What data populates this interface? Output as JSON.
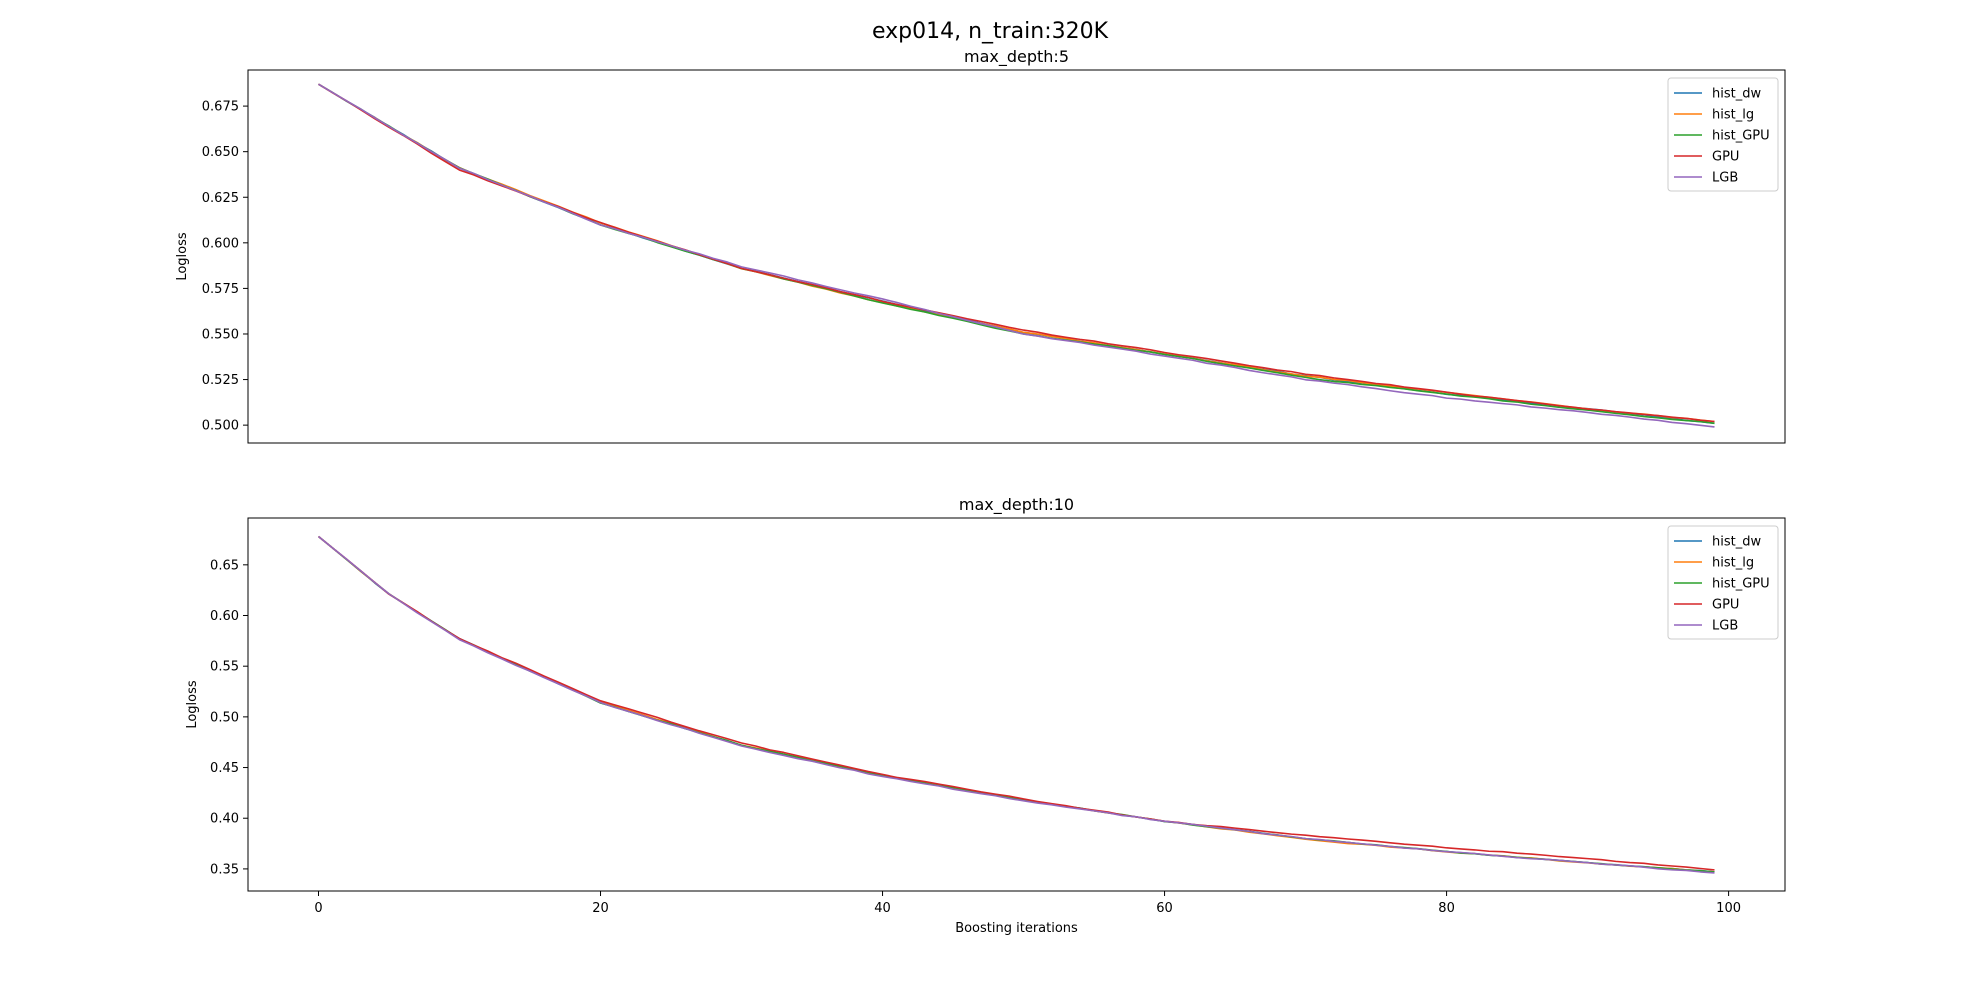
{
  "figure": {
    "suptitle": "exp014, n_train:320K"
  },
  "colors": {
    "hist_dw": "#1f77b4",
    "hist_lg": "#ff7f0e",
    "hist_GPU": "#2ca02c",
    "GPU": "#d62728",
    "LGB": "#9467bd"
  },
  "chart_data": [
    {
      "type": "line",
      "title": "max_depth:5",
      "xlabel": "",
      "ylabel": "Logloss",
      "xlim": [
        -5,
        104
      ],
      "ylim": [
        0.4902,
        0.6948
      ],
      "x_ticks": [],
      "y_ticks": [
        0.5,
        0.525,
        0.55,
        0.575,
        0.6,
        0.625,
        0.65,
        0.675
      ],
      "y_tick_labels": [
        "0.500",
        "0.525",
        "0.550",
        "0.575",
        "0.600",
        "0.625",
        "0.650",
        "0.675"
      ],
      "legend_position": "top-right",
      "x_start": 0,
      "x_end": 99,
      "series": [
        {
          "name": "hist_dw",
          "anchors": [
            [
              0,
              0.687
            ],
            [
              10,
              0.641
            ],
            [
              20,
              0.61
            ],
            [
              30,
              0.586
            ],
            [
              40,
              0.568
            ],
            [
              50,
              0.551
            ],
            [
              60,
              0.539
            ],
            [
              70,
              0.527
            ],
            [
              80,
              0.517
            ],
            [
              90,
              0.509
            ],
            [
              99,
              0.501
            ]
          ]
        },
        {
          "name": "hist_lg",
          "anchors": [
            [
              0,
              0.687
            ],
            [
              10,
              0.641
            ],
            [
              20,
              0.611
            ],
            [
              30,
              0.586
            ],
            [
              40,
              0.567
            ],
            [
              50,
              0.551
            ],
            [
              60,
              0.539
            ],
            [
              70,
              0.527
            ],
            [
              80,
              0.518
            ],
            [
              90,
              0.509
            ],
            [
              99,
              0.502
            ]
          ]
        },
        {
          "name": "hist_GPU",
          "anchors": [
            [
              0,
              0.687
            ],
            [
              10,
              0.641
            ],
            [
              20,
              0.61
            ],
            [
              30,
              0.586
            ],
            [
              40,
              0.567
            ],
            [
              50,
              0.55
            ],
            [
              60,
              0.539
            ],
            [
              70,
              0.526
            ],
            [
              80,
              0.517
            ],
            [
              90,
              0.508
            ],
            [
              99,
              0.501
            ]
          ]
        },
        {
          "name": "GPU",
          "anchors": [
            [
              0,
              0.687
            ],
            [
              10,
              0.64
            ],
            [
              20,
              0.611
            ],
            [
              30,
              0.586
            ],
            [
              40,
              0.568
            ],
            [
              50,
              0.552
            ],
            [
              60,
              0.54
            ],
            [
              70,
              0.528
            ],
            [
              80,
              0.518
            ],
            [
              90,
              0.509
            ],
            [
              99,
              0.502
            ]
          ]
        },
        {
          "name": "LGB",
          "anchors": [
            [
              0,
              0.687
            ],
            [
              10,
              0.641
            ],
            [
              20,
              0.61
            ],
            [
              30,
              0.587
            ],
            [
              40,
              0.569
            ],
            [
              50,
              0.55
            ],
            [
              60,
              0.538
            ],
            [
              70,
              0.525
            ],
            [
              80,
              0.515
            ],
            [
              90,
              0.507
            ],
            [
              99,
              0.499
            ]
          ]
        }
      ]
    },
    {
      "type": "line",
      "title": "max_depth:10",
      "xlabel": "Boosting iterations",
      "ylabel": "Logloss",
      "xlim": [
        -5,
        104
      ],
      "ylim": [
        0.3282,
        0.6962
      ],
      "x_ticks": [
        0,
        20,
        40,
        60,
        80,
        100
      ],
      "y_ticks": [
        0.35,
        0.4,
        0.45,
        0.5,
        0.55,
        0.6,
        0.65
      ],
      "y_tick_labels": [
        "0.35",
        "0.40",
        "0.45",
        "0.50",
        "0.55",
        "0.60",
        "0.65"
      ],
      "legend_position": "top-right",
      "x_start": 0,
      "x_end": 99,
      "series": [
        {
          "name": "hist_dw",
          "anchors": [
            [
              0,
              0.678
            ],
            [
              5,
              0.621
            ],
            [
              10,
              0.577
            ],
            [
              20,
              0.514
            ],
            [
              30,
              0.472
            ],
            [
              40,
              0.442
            ],
            [
              50,
              0.418
            ],
            [
              60,
              0.397
            ],
            [
              70,
              0.38
            ],
            [
              80,
              0.367
            ],
            [
              90,
              0.356
            ],
            [
              99,
              0.347
            ]
          ]
        },
        {
          "name": "hist_lg",
          "anchors": [
            [
              0,
              0.678
            ],
            [
              5,
              0.621
            ],
            [
              10,
              0.577
            ],
            [
              20,
              0.515
            ],
            [
              30,
              0.472
            ],
            [
              40,
              0.442
            ],
            [
              50,
              0.418
            ],
            [
              60,
              0.397
            ],
            [
              70,
              0.379
            ],
            [
              80,
              0.367
            ],
            [
              90,
              0.356
            ],
            [
              99,
              0.347
            ]
          ]
        },
        {
          "name": "hist_GPU",
          "anchors": [
            [
              0,
              0.678
            ],
            [
              5,
              0.621
            ],
            [
              10,
              0.577
            ],
            [
              20,
              0.514
            ],
            [
              30,
              0.472
            ],
            [
              40,
              0.442
            ],
            [
              50,
              0.418
            ],
            [
              60,
              0.397
            ],
            [
              70,
              0.38
            ],
            [
              80,
              0.367
            ],
            [
              90,
              0.356
            ],
            [
              99,
              0.347
            ]
          ]
        },
        {
          "name": "GPU",
          "anchors": [
            [
              0,
              0.678
            ],
            [
              5,
              0.621
            ],
            [
              10,
              0.577
            ],
            [
              20,
              0.516
            ],
            [
              30,
              0.474
            ],
            [
              40,
              0.443
            ],
            [
              50,
              0.419
            ],
            [
              60,
              0.397
            ],
            [
              70,
              0.383
            ],
            [
              80,
              0.371
            ],
            [
              90,
              0.36
            ],
            [
              99,
              0.349
            ]
          ]
        },
        {
          "name": "LGB",
          "anchors": [
            [
              0,
              0.678
            ],
            [
              5,
              0.621
            ],
            [
              10,
              0.576
            ],
            [
              20,
              0.514
            ],
            [
              30,
              0.471
            ],
            [
              40,
              0.441
            ],
            [
              50,
              0.417
            ],
            [
              60,
              0.397
            ],
            [
              70,
              0.38
            ],
            [
              80,
              0.367
            ],
            [
              90,
              0.356
            ],
            [
              99,
              0.346
            ]
          ]
        }
      ]
    }
  ]
}
